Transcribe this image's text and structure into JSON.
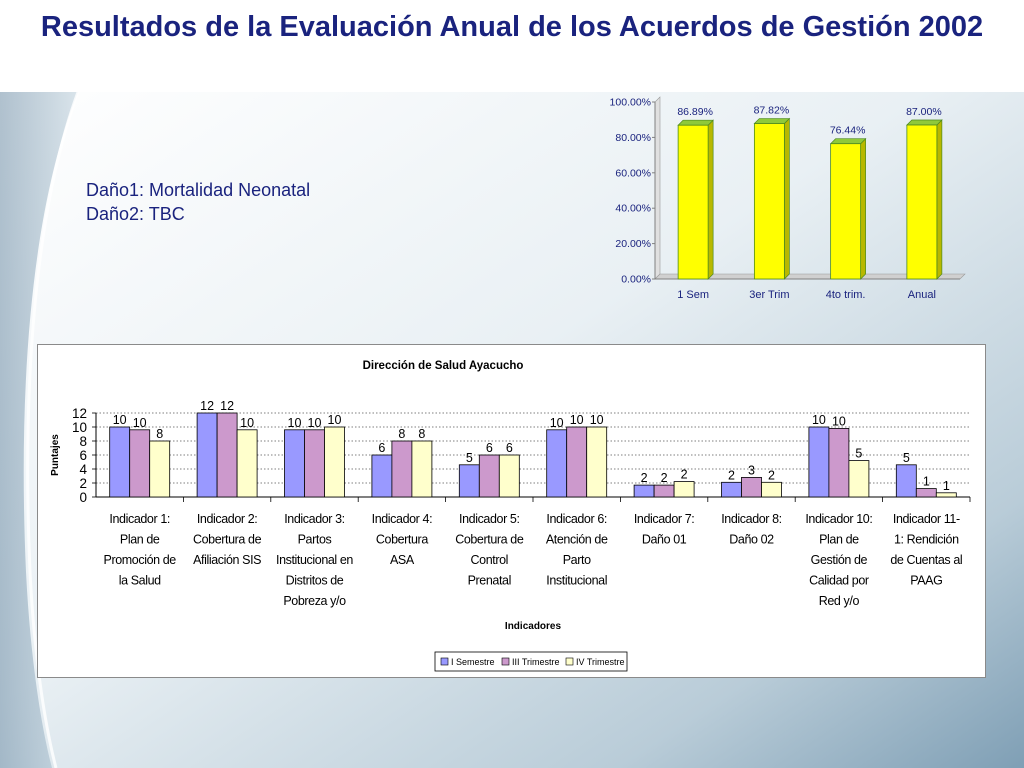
{
  "title": "Resultados de la Evaluación Anual de los Acuerdos de Gestión 2002",
  "notes": [
    "Daño1: Mortalidad Neonatal",
    "Daño2: TBC"
  ],
  "colors": {
    "title": "#1a237e",
    "yellow_bar": "#ffff00",
    "bar_edge": "#4d8a1e",
    "series1": "#9999ff",
    "series2": "#cc99cc",
    "series3": "#ffffcc"
  },
  "chart_data": [
    {
      "type": "bar",
      "categories": [
        "1 Sem",
        "3er Trim",
        "4to trim.",
        "Anual"
      ],
      "values": [
        86.89,
        87.82,
        76.44,
        87.0
      ],
      "value_labels": [
        "86.89%",
        "87.82%",
        "76.44%",
        "87.00%"
      ],
      "y_ticks": [
        "0.00%",
        "20.00%",
        "40.00%",
        "60.00%",
        "80.00%",
        "100.00%"
      ],
      "ylim": [
        0,
        100
      ],
      "grid": false,
      "legend": "none"
    },
    {
      "type": "bar",
      "title": "Dirección de Salud Ayacucho",
      "xlabel": "Indicadores",
      "ylabel": "Puntajes",
      "ylim": [
        0,
        12
      ],
      "y_ticks": [
        "0",
        "2",
        "4",
        "6",
        "8",
        "10",
        "12"
      ],
      "grid": true,
      "legend": "bottom",
      "categories": [
        [
          "Indicador 1:",
          "Plan de",
          "Promoción de",
          "la Salud"
        ],
        [
          "Indicador 2:",
          "Cobertura de",
          "Afiliación SIS"
        ],
        [
          "Indicador 3:",
          "Partos",
          "Institucional en",
          "Distritos de",
          "Pobreza y/o"
        ],
        [
          "Indicador 4:",
          "Cobertura",
          "ASA"
        ],
        [
          "Indicador 5:",
          "Cobertura de",
          "Control",
          "Prenatal"
        ],
        [
          "Indicador 6:",
          "Atención de",
          "Parto",
          "Institucional"
        ],
        [
          "Indicador 7:",
          "Daño 01"
        ],
        [
          "Indicador 8:",
          "Daño 02"
        ],
        [
          "Indicador 10:",
          "Plan de",
          "Gestión de",
          "Calidad por",
          "Red y/o"
        ],
        [
          "Indicador 11-",
          "1: Rendición",
          "de Cuentas al",
          "PAAG"
        ]
      ],
      "series": [
        {
          "name": "I Semestre",
          "values": [
            10,
            12,
            9.6,
            6,
            4.6,
            9.6,
            1.7,
            2.1,
            10,
            4.6
          ],
          "labels": [
            "10",
            "12",
            "10",
            "6",
            "5",
            "10",
            "2",
            "2",
            "10",
            "5"
          ]
        },
        {
          "name": "III Trimestre",
          "values": [
            9.6,
            12,
            9.6,
            8,
            6,
            10,
            1.7,
            2.8,
            9.8,
            1.2
          ],
          "labels": [
            "10",
            "12",
            "10",
            "8",
            "6",
            "10",
            "2",
            "3",
            "10",
            "1"
          ]
        },
        {
          "name": "IV Trimestre",
          "values": [
            8,
            9.6,
            10,
            8,
            6,
            10,
            2.2,
            2.1,
            5.2,
            0.6
          ],
          "labels": [
            "8",
            "10",
            "10",
            "8",
            "6",
            "10",
            "2",
            "2",
            "5",
            "1"
          ]
        }
      ]
    }
  ]
}
